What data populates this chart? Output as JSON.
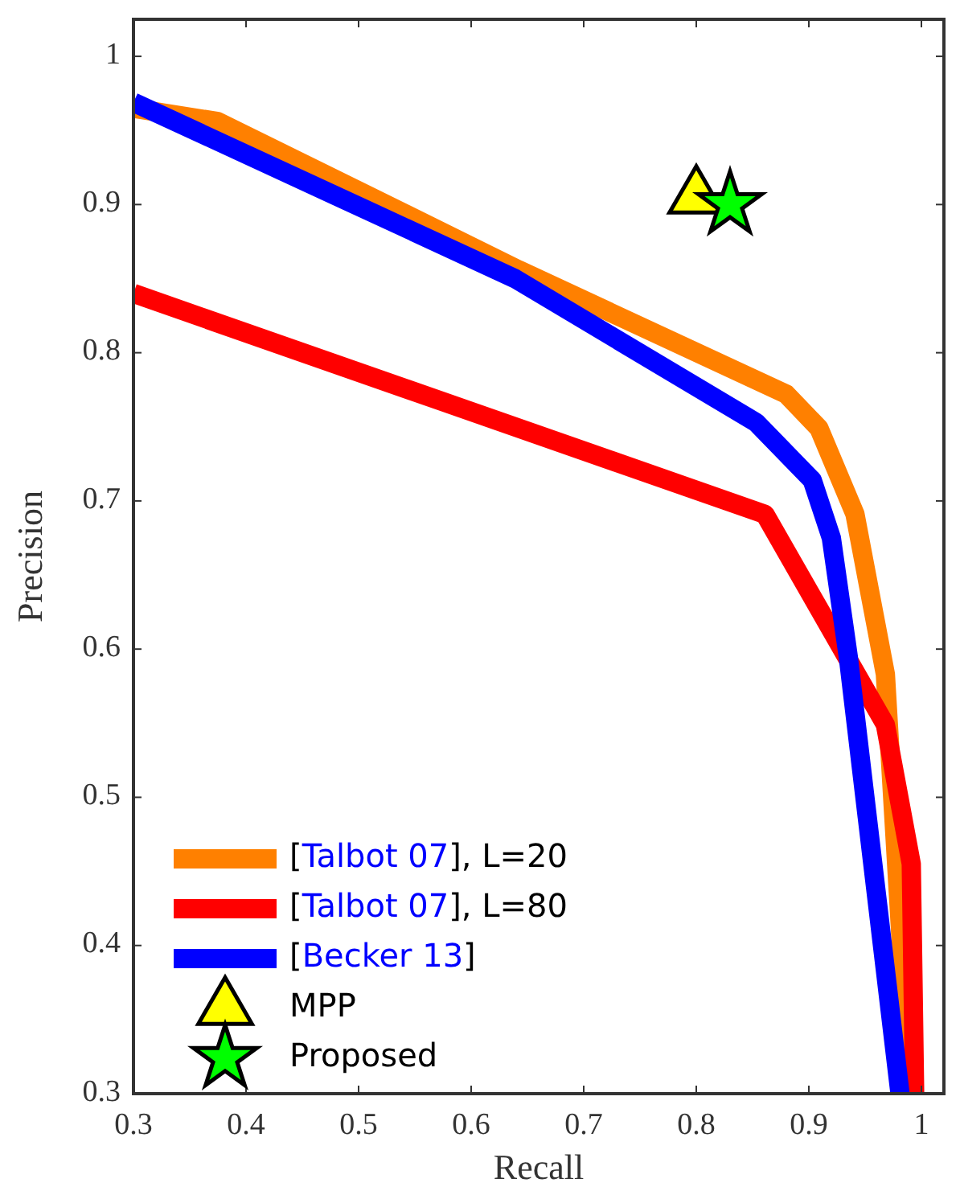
{
  "chart_data": {
    "type": "line",
    "xlabel": "Recall",
    "ylabel": "Precision",
    "xlim": [
      0.3,
      1.02
    ],
    "ylim": [
      0.3,
      1.025
    ],
    "xticks": [
      0.3,
      0.4,
      0.5,
      0.6,
      0.7,
      0.8,
      0.9,
      1
    ],
    "yticks": [
      0.3,
      0.4,
      0.5,
      0.6,
      0.7,
      0.8,
      0.9,
      1
    ],
    "grid": false,
    "legend": "bottom left",
    "series": [
      {
        "name": "[Talbot 07], L=20",
        "color": "#ff8000",
        "x": [
          0.3,
          0.375,
          0.642,
          0.88,
          0.909,
          0.941,
          0.968,
          0.979,
          0.99
        ],
        "values": [
          0.965,
          0.956,
          0.856,
          0.772,
          0.749,
          0.691,
          0.583,
          0.442,
          0.3
        ]
      },
      {
        "name": "[Talbot 07], L=80",
        "color": "#ff0000",
        "x": [
          0.3,
          0.861,
          0.968,
          0.991,
          0.994
        ],
        "values": [
          0.84,
          0.691,
          0.549,
          0.455,
          0.3
        ]
      },
      {
        "name": "[Becker 13]",
        "color": "#0000ff",
        "x": [
          0.3,
          0.639,
          0.853,
          0.903,
          0.92,
          0.935,
          0.981
        ],
        "values": [
          0.969,
          0.85,
          0.753,
          0.714,
          0.675,
          0.595,
          0.3
        ]
      },
      {
        "name": "MPP",
        "type": "scatter",
        "marker": "triangle",
        "color": "#ffff00",
        "x": [
          0.8
        ],
        "values": [
          0.905
        ]
      },
      {
        "name": "Proposed",
        "type": "scatter",
        "marker": "star",
        "color": "#00ff00",
        "x": [
          0.83
        ],
        "values": [
          0.9
        ]
      }
    ]
  }
}
